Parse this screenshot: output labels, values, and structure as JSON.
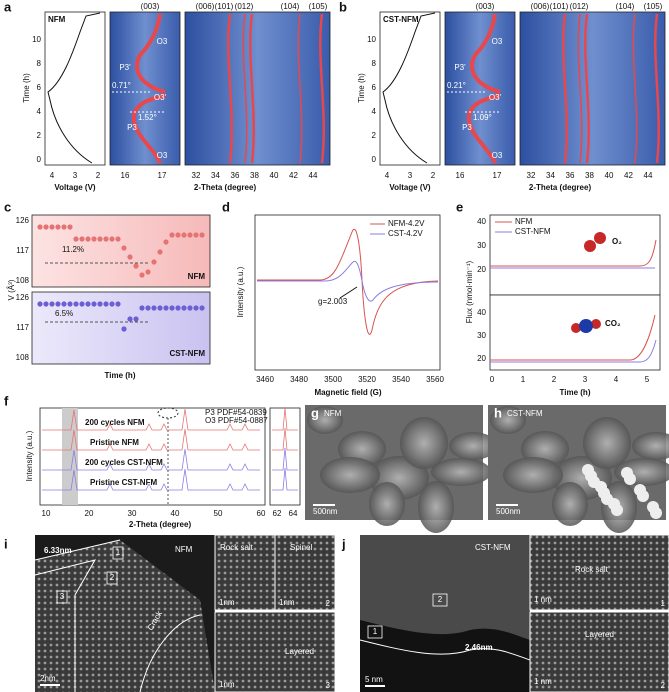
{
  "a": {
    "label": "a",
    "sample": "NFM",
    "hkl": [
      "(003)",
      "(006)",
      "(101)",
      "(012)",
      "(104)",
      "(105)"
    ],
    "phases": [
      "O3",
      "P3'",
      "O3'",
      "P3",
      "O3"
    ],
    "angles": [
      "0.71°",
      "1.52°"
    ],
    "y_title": "Time (h)",
    "y_ticks": [
      0,
      2,
      4,
      6,
      8,
      10
    ],
    "voltage_ticks": [
      4,
      3,
      2
    ],
    "voltage_title": "Voltage (V)",
    "theta_ticks_1": [
      16,
      17
    ],
    "theta_ticks_2": [
      32,
      34,
      36,
      38,
      40,
      42,
      44
    ],
    "theta_title": "2-Theta (degree)"
  },
  "b": {
    "label": "b",
    "sample": "CST-NFM",
    "hkl": [
      "(003)",
      "(006)",
      "(101)",
      "(012)",
      "(104)",
      "(105)"
    ],
    "phases": [
      "O3",
      "P3'",
      "O3'",
      "P3",
      "O3"
    ],
    "angles": [
      "0.21°",
      "1.09°"
    ],
    "y_title": "Time (h)",
    "y_ticks": [
      0,
      2,
      4,
      6,
      8,
      10
    ],
    "voltage_ticks": [
      4,
      3,
      2
    ],
    "voltage_title": "Voltage (V)",
    "theta_ticks_1": [
      16,
      17
    ],
    "theta_ticks_2": [
      32,
      34,
      36,
      38,
      40,
      42,
      44
    ],
    "theta_title": "2-Theta (degree)"
  },
  "c": {
    "label": "c",
    "y_title": "V (Å³)",
    "top": {
      "ticks": [
        126,
        117,
        108
      ],
      "change": "11.2%",
      "sample": "NFM"
    },
    "bottom": {
      "ticks": [
        126,
        117,
        108
      ],
      "change": "6.5%",
      "sample": "CST-NFM"
    },
    "x_title": "Time (h)"
  },
  "d": {
    "label": "d",
    "y_title": "Intensity (a.u.)",
    "legend": [
      "NFM-4.2V",
      "CST-4.2V"
    ],
    "annotation": "g=2.003",
    "x_ticks": [
      3460,
      3480,
      3500,
      3520,
      3540,
      3560
    ],
    "x_title": "Magnetic field (G)"
  },
  "e": {
    "label": "e",
    "legend": [
      "NFM",
      "CST-NFM"
    ],
    "gases": [
      "O₂",
      "CO₂"
    ],
    "y_title": "Flux (nmol·min⁻¹)",
    "y_ticks_top": [
      40,
      30,
      20
    ],
    "y_ticks_bottom": [
      40,
      30,
      20
    ],
    "x_ticks": [
      0,
      1,
      2,
      3,
      4,
      5
    ],
    "x_title": "Time (h)"
  },
  "f": {
    "label": "f",
    "traces": [
      "200 cycles NFM",
      "Pristine NFM",
      "200 cycles CST-NFM",
      "Pristine CST-NFM"
    ],
    "legend": [
      "P3 PDF#54-0839",
      "O3 PDF#54-0887"
    ],
    "y_title": "Intensity (a.u.)",
    "x_ticks": [
      10,
      20,
      30,
      40,
      50,
      60
    ],
    "x_ticks_zoom": [
      62,
      64
    ],
    "x_title": "2-Theta (degree)"
  },
  "g": {
    "label": "g",
    "sample": "NFM",
    "scale": "500nm"
  },
  "h": {
    "label": "h",
    "sample": "CST-NFM",
    "scale": "500nm"
  },
  "i": {
    "label": "i",
    "thickness": "6.33nm",
    "sample": "NFM",
    "regions": [
      "1",
      "2",
      "3"
    ],
    "crack": "Crack",
    "phases": [
      "Rock salt",
      "Spinel",
      "Layered"
    ],
    "scale": "2nm",
    "inset_scales": [
      "1nm",
      "1nm",
      "1nm"
    ],
    "inset_numbers": [
      "2",
      "3"
    ]
  },
  "j": {
    "label": "j",
    "sample": "CST-NFM",
    "regions": [
      "2",
      "1"
    ],
    "thickness": "2.46nm",
    "phases": [
      "Rock salt",
      "Layered"
    ],
    "scale": "5 nm",
    "inset_scales": [
      "1 nm",
      "1 nm"
    ],
    "inset_numbers": [
      "1",
      "2"
    ]
  }
}
